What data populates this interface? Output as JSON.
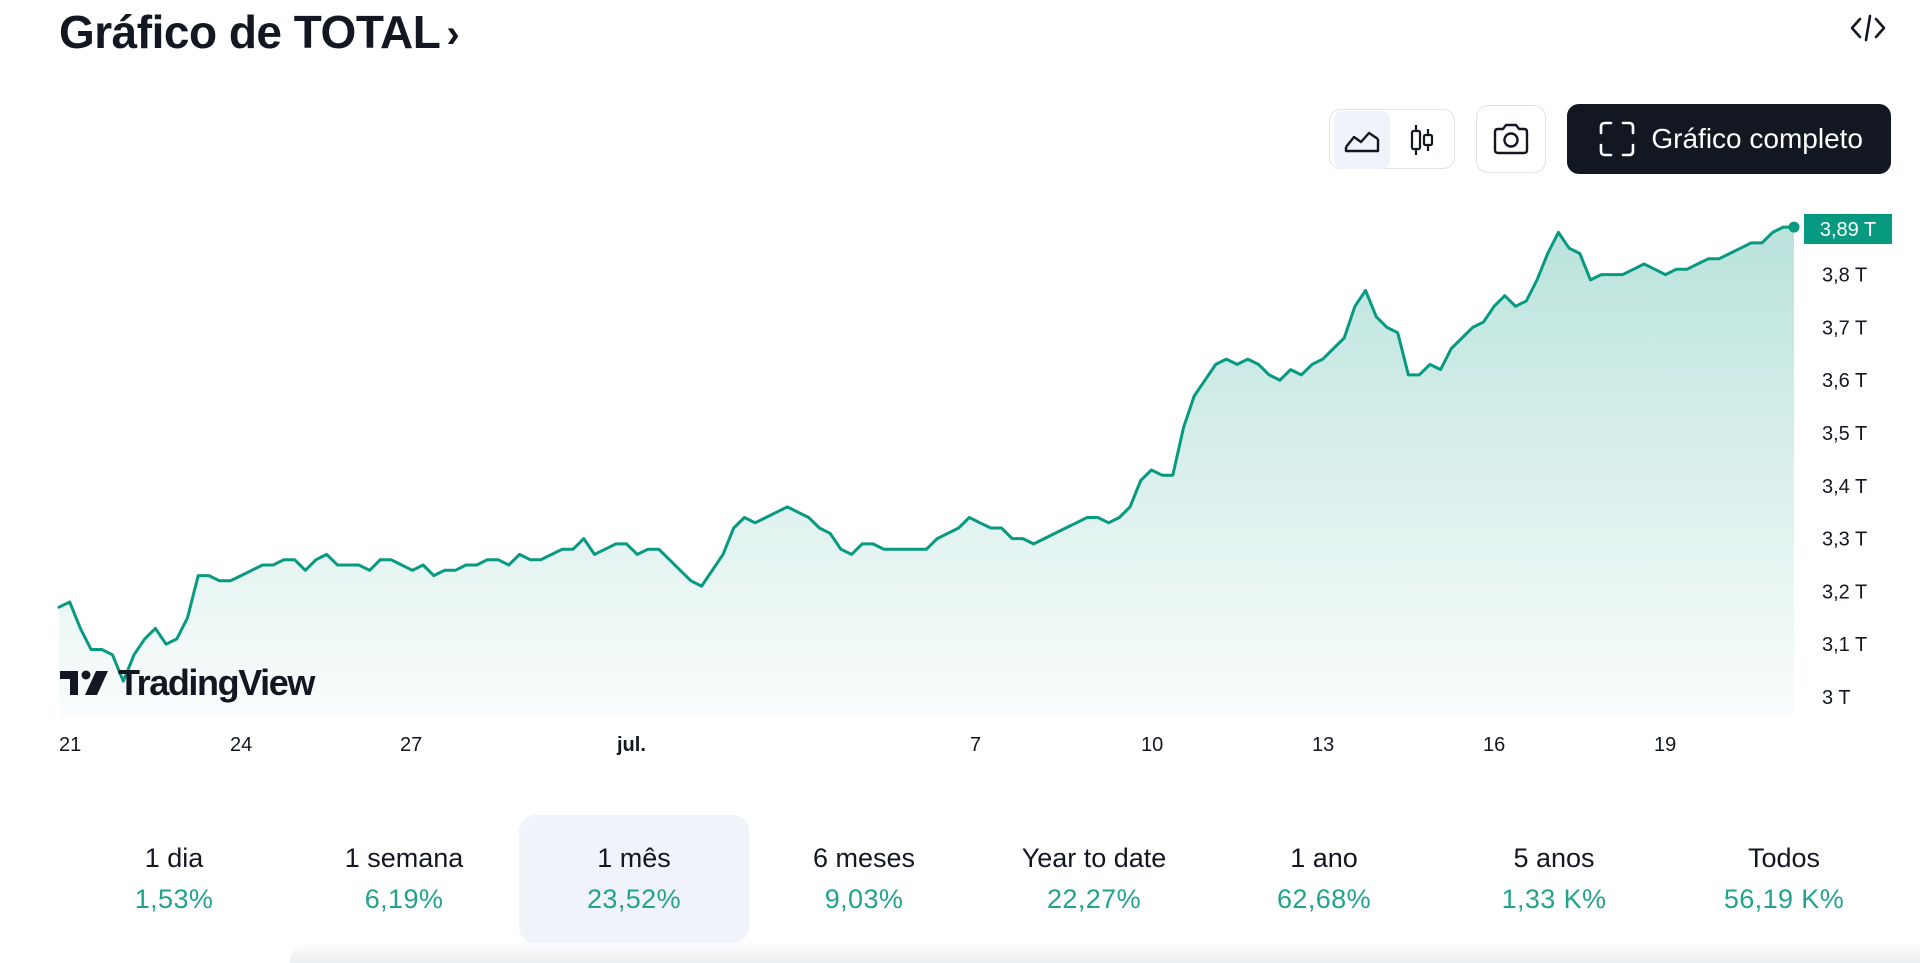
{
  "header": {
    "title": "Gráfico de TOTAL",
    "chevron": "›",
    "embed_icon": "code-icon"
  },
  "toolbar": {
    "chart_types": [
      {
        "name": "area-chart-icon",
        "active": true
      },
      {
        "name": "candles-icon",
        "active": false
      }
    ],
    "snapshot_icon": "camera-icon",
    "fullscreen_label": "Gráfico completo",
    "fullscreen_icon": "expand-icon"
  },
  "watermark": {
    "text": "TradingView"
  },
  "colors": {
    "line": "#089981",
    "price_badge": "#089981",
    "positive": "#22a38d",
    "dark": "#131722"
  },
  "chart_data": {
    "type": "area",
    "series": [
      {
        "values": [
          3.17,
          3.18,
          3.13,
          3.09,
          3.09,
          3.08,
          3.03,
          3.08,
          3.11,
          3.13,
          3.1,
          3.11,
          3.15,
          3.23,
          3.23,
          3.22,
          3.22,
          3.23,
          3.24,
          3.25,
          3.25,
          3.26,
          3.26,
          3.24,
          3.26,
          3.27,
          3.25,
          3.25,
          3.25,
          3.24,
          3.26,
          3.26,
          3.25,
          3.24,
          3.25,
          3.23,
          3.24,
          3.24,
          3.25,
          3.25,
          3.26,
          3.26,
          3.25,
          3.27,
          3.26,
          3.26,
          3.27,
          3.28,
          3.28,
          3.3,
          3.27,
          3.28,
          3.29,
          3.29,
          3.27,
          3.28,
          3.28,
          3.26,
          3.24,
          3.22,
          3.21,
          3.24,
          3.27,
          3.32,
          3.34,
          3.33,
          3.34,
          3.35,
          3.36,
          3.35,
          3.34,
          3.32,
          3.31,
          3.28,
          3.27,
          3.29,
          3.29,
          3.28,
          3.28,
          3.28,
          3.28,
          3.28,
          3.3,
          3.31,
          3.32,
          3.34,
          3.33,
          3.32,
          3.32,
          3.3,
          3.3,
          3.29,
          3.3,
          3.31,
          3.32,
          3.33,
          3.34,
          3.34,
          3.33,
          3.34,
          3.36,
          3.41,
          3.43,
          3.42,
          3.42,
          3.51,
          3.57,
          3.6,
          3.63,
          3.64,
          3.63,
          3.64,
          3.63,
          3.61,
          3.6,
          3.62,
          3.61,
          3.63,
          3.64,
          3.66,
          3.68,
          3.74,
          3.77,
          3.72,
          3.7,
          3.69,
          3.61,
          3.61,
          3.63,
          3.62,
          3.66,
          3.68,
          3.7,
          3.71,
          3.74,
          3.76,
          3.74,
          3.75,
          3.79,
          3.84,
          3.88,
          3.85,
          3.84,
          3.79,
          3.8,
          3.8,
          3.8,
          3.81,
          3.82,
          3.81,
          3.8,
          3.81,
          3.81,
          3.82,
          3.83,
          3.83,
          3.84,
          3.85,
          3.86,
          3.86,
          3.88,
          3.89,
          3.89
        ]
      }
    ],
    "y_ticks": [
      "3 T",
      "3,1 T",
      "3,2 T",
      "3,3 T",
      "3,4 T",
      "3,5 T",
      "3,6 T",
      "3,7 T",
      "3,8 T"
    ],
    "ylim": [
      3.0,
      3.89
    ],
    "x_ticks": [
      {
        "label": "21",
        "bold": false
      },
      {
        "label": "24",
        "bold": false
      },
      {
        "label": "27",
        "bold": false
      },
      {
        "label": "jul.",
        "bold": true
      },
      {
        "label": "7",
        "bold": false
      },
      {
        "label": "10",
        "bold": false
      },
      {
        "label": "13",
        "bold": false
      },
      {
        "label": "16",
        "bold": false
      },
      {
        "label": "19",
        "bold": false
      }
    ],
    "last_price_label": "3,89 T"
  },
  "periods": [
    {
      "label": "1 dia",
      "value": "1,53%",
      "active": false
    },
    {
      "label": "1 semana",
      "value": "6,19%",
      "active": false
    },
    {
      "label": "1 mês",
      "value": "23,52%",
      "active": true
    },
    {
      "label": "6 meses",
      "value": "9,03%",
      "active": false
    },
    {
      "label": "Year to date",
      "value": "22,27%",
      "active": false
    },
    {
      "label": "1 ano",
      "value": "62,68%",
      "active": false
    },
    {
      "label": "5 anos",
      "value": "1,33 K%",
      "active": false
    },
    {
      "label": "Todos",
      "value": "56,19 K%",
      "active": false
    }
  ]
}
